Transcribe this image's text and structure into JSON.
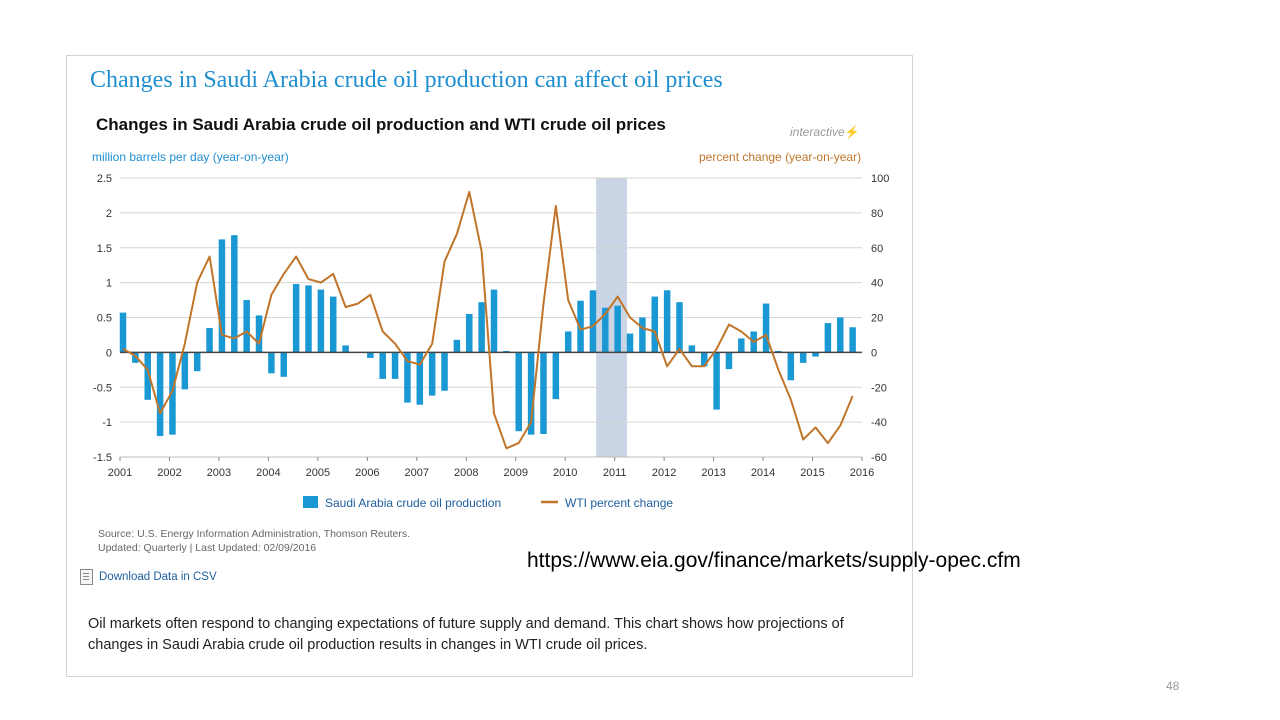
{
  "panel": {
    "title": "Changes in Saudi Arabia crude oil production can affect oil prices",
    "interactive_label": "interactive",
    "source_line1": "Source: U.S. Energy Information Administration, Thomson Reuters.",
    "source_line2": "Updated: Quarterly | Last Updated: 02/09/2016",
    "download_label": "Download Data in CSV",
    "description": "Oil markets often respond to changing expectations of future supply and demand. This chart shows how projections of changes in Saudi Arabia crude oil production results in changes in WTI crude oil prices."
  },
  "slide": {
    "url": "https://www.eia.gov/finance/markets/supply-opec.cfm",
    "page_number": "48"
  },
  "colors": {
    "bar": "#1a98d4",
    "line": "#c0752a",
    "shade": "#c9d5e5",
    "grid": "#d6d6d6",
    "title": "#1f8fd0"
  },
  "chart_data": {
    "type": "bar",
    "title": "Changes in Saudi Arabia crude oil production and WTI crude oil prices",
    "ylabel_left": "million barrels per day (year-on-year)",
    "ylabel_right": "percent change (year-on-year)",
    "ylim_left": [
      -1.5,
      2.5
    ],
    "ylim_right": [
      -60,
      100
    ],
    "yticks_left": [
      "2.5",
      "2",
      "1.5",
      "1",
      "0.5",
      "0",
      "-0.5",
      "-1",
      "-1.5"
    ],
    "yticks_right": [
      "100",
      "80",
      "60",
      "40",
      "20",
      "0",
      "-20",
      "-40",
      "-60"
    ],
    "xlim": [
      2001,
      2016
    ],
    "xticks": [
      "2001",
      "2002",
      "2003",
      "2004",
      "2005",
      "2006",
      "2007",
      "2008",
      "2009",
      "2010",
      "2011",
      "2012",
      "2013",
      "2014",
      "2015",
      "2016"
    ],
    "grid": true,
    "legend_position": "bottom",
    "shaded_period": [
      2010.625,
      2011.25
    ],
    "series": [
      {
        "name": "Saudi Arabia crude oil production",
        "type": "bar",
        "axis": "left",
        "x": [
          2001.0,
          2001.25,
          2001.5,
          2001.75,
          2002.0,
          2002.25,
          2002.5,
          2002.75,
          2003.0,
          2003.25,
          2003.5,
          2003.75,
          2004.0,
          2004.25,
          2004.5,
          2004.75,
          2005.0,
          2005.25,
          2005.5,
          2005.75,
          2006.0,
          2006.25,
          2006.5,
          2006.75,
          2007.0,
          2007.25,
          2007.5,
          2007.75,
          2008.0,
          2008.25,
          2008.5,
          2008.75,
          2009.0,
          2009.25,
          2009.5,
          2009.75,
          2010.0,
          2010.25,
          2010.5,
          2010.75,
          2011.0,
          2011.25,
          2011.5,
          2011.75,
          2012.0,
          2012.25,
          2012.5,
          2012.75,
          2013.0,
          2013.25,
          2013.5,
          2013.75,
          2014.0,
          2014.25,
          2014.5,
          2014.75,
          2015.0,
          2015.25,
          2015.5,
          2015.75
        ],
        "values": [
          0.57,
          -0.15,
          -0.68,
          -1.2,
          -1.18,
          -0.53,
          -0.27,
          0.35,
          1.62,
          1.68,
          0.75,
          0.53,
          -0.3,
          -0.35,
          0.98,
          0.96,
          0.9,
          0.8,
          0.1,
          0.0,
          -0.08,
          -0.38,
          -0.38,
          -0.72,
          -0.75,
          -0.62,
          -0.55,
          0.18,
          0.55,
          0.72,
          0.9,
          0.02,
          -1.13,
          -1.18,
          -1.17,
          -0.67,
          0.3,
          0.74,
          0.89,
          0.64,
          0.67,
          0.27,
          0.5,
          0.8,
          0.89,
          0.72,
          0.1,
          -0.2,
          -0.82,
          -0.24,
          0.2,
          0.3,
          0.7,
          0.02,
          -0.4,
          -0.15,
          -0.06,
          0.42,
          0.5,
          0.36
        ]
      },
      {
        "name": "WTI percent change",
        "type": "line",
        "axis": "right",
        "x": [
          2001.0,
          2001.25,
          2001.5,
          2001.75,
          2002.0,
          2002.25,
          2002.5,
          2002.75,
          2003.0,
          2003.25,
          2003.5,
          2003.75,
          2004.0,
          2004.25,
          2004.5,
          2004.75,
          2005.0,
          2005.25,
          2005.5,
          2005.75,
          2006.0,
          2006.25,
          2006.5,
          2006.75,
          2007.0,
          2007.25,
          2007.5,
          2007.75,
          2008.0,
          2008.25,
          2008.5,
          2008.75,
          2009.0,
          2009.25,
          2009.5,
          2009.75,
          2010.0,
          2010.25,
          2010.5,
          2010.75,
          2011.0,
          2011.25,
          2011.5,
          2011.75,
          2012.0,
          2012.25,
          2012.5,
          2012.75,
          2013.0,
          2013.25,
          2013.5,
          2013.75,
          2014.0,
          2014.25,
          2014.5,
          2014.75,
          2015.0,
          2015.25,
          2015.5,
          2015.75
        ],
        "values": [
          2,
          -2,
          -10,
          -35,
          -22,
          5,
          40,
          55,
          10,
          8,
          12,
          5,
          33,
          45,
          55,
          42,
          40,
          45,
          26,
          28,
          33,
          12,
          5,
          -5,
          -7,
          5,
          52,
          68,
          92,
          58,
          -35,
          -55,
          -52,
          -40,
          28,
          84,
          30,
          13,
          15,
          22,
          32,
          20,
          14,
          12,
          -8,
          2,
          -8,
          -8,
          2,
          16,
          12,
          6,
          10,
          -10,
          -27,
          -50,
          -43,
          -52,
          -42,
          -25
        ]
      }
    ]
  }
}
